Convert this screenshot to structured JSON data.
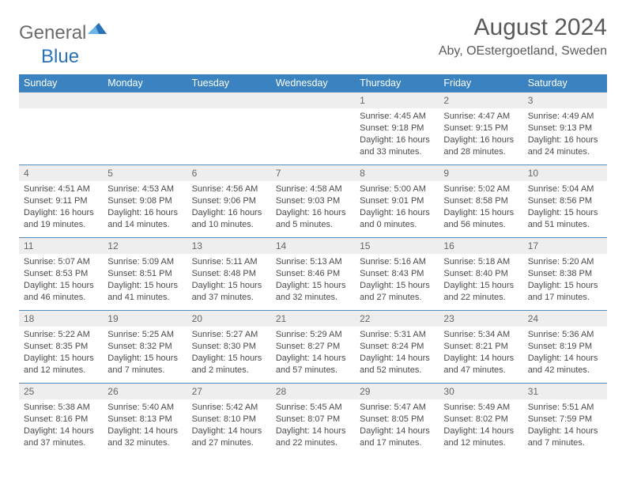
{
  "logo": {
    "word1": "General",
    "word2": "Blue"
  },
  "title": "August 2024",
  "location": "Aby, OEstergoetland, Sweden",
  "colors": {
    "header_bg": "#3b83c0",
    "header_text": "#ffffff",
    "daynum_bg": "#eeeeee",
    "row_border": "#548bbd",
    "text": "#4a4a4a",
    "title_text": "#5a5a5a",
    "logo_gray": "#6b6b6b",
    "logo_blue": "#2a71b8"
  },
  "weekdays": [
    "Sunday",
    "Monday",
    "Tuesday",
    "Wednesday",
    "Thursday",
    "Friday",
    "Saturday"
  ],
  "weeks": [
    [
      null,
      null,
      null,
      null,
      {
        "n": "1",
        "sr": "4:45 AM",
        "ss": "9:18 PM",
        "dl": "16 hours and 33 minutes."
      },
      {
        "n": "2",
        "sr": "4:47 AM",
        "ss": "9:15 PM",
        "dl": "16 hours and 28 minutes."
      },
      {
        "n": "3",
        "sr": "4:49 AM",
        "ss": "9:13 PM",
        "dl": "16 hours and 24 minutes."
      }
    ],
    [
      {
        "n": "4",
        "sr": "4:51 AM",
        "ss": "9:11 PM",
        "dl": "16 hours and 19 minutes."
      },
      {
        "n": "5",
        "sr": "4:53 AM",
        "ss": "9:08 PM",
        "dl": "16 hours and 14 minutes."
      },
      {
        "n": "6",
        "sr": "4:56 AM",
        "ss": "9:06 PM",
        "dl": "16 hours and 10 minutes."
      },
      {
        "n": "7",
        "sr": "4:58 AM",
        "ss": "9:03 PM",
        "dl": "16 hours and 5 minutes."
      },
      {
        "n": "8",
        "sr": "5:00 AM",
        "ss": "9:01 PM",
        "dl": "16 hours and 0 minutes."
      },
      {
        "n": "9",
        "sr": "5:02 AM",
        "ss": "8:58 PM",
        "dl": "15 hours and 56 minutes."
      },
      {
        "n": "10",
        "sr": "5:04 AM",
        "ss": "8:56 PM",
        "dl": "15 hours and 51 minutes."
      }
    ],
    [
      {
        "n": "11",
        "sr": "5:07 AM",
        "ss": "8:53 PM",
        "dl": "15 hours and 46 minutes."
      },
      {
        "n": "12",
        "sr": "5:09 AM",
        "ss": "8:51 PM",
        "dl": "15 hours and 41 minutes."
      },
      {
        "n": "13",
        "sr": "5:11 AM",
        "ss": "8:48 PM",
        "dl": "15 hours and 37 minutes."
      },
      {
        "n": "14",
        "sr": "5:13 AM",
        "ss": "8:46 PM",
        "dl": "15 hours and 32 minutes."
      },
      {
        "n": "15",
        "sr": "5:16 AM",
        "ss": "8:43 PM",
        "dl": "15 hours and 27 minutes."
      },
      {
        "n": "16",
        "sr": "5:18 AM",
        "ss": "8:40 PM",
        "dl": "15 hours and 22 minutes."
      },
      {
        "n": "17",
        "sr": "5:20 AM",
        "ss": "8:38 PM",
        "dl": "15 hours and 17 minutes."
      }
    ],
    [
      {
        "n": "18",
        "sr": "5:22 AM",
        "ss": "8:35 PM",
        "dl": "15 hours and 12 minutes."
      },
      {
        "n": "19",
        "sr": "5:25 AM",
        "ss": "8:32 PM",
        "dl": "15 hours and 7 minutes."
      },
      {
        "n": "20",
        "sr": "5:27 AM",
        "ss": "8:30 PM",
        "dl": "15 hours and 2 minutes."
      },
      {
        "n": "21",
        "sr": "5:29 AM",
        "ss": "8:27 PM",
        "dl": "14 hours and 57 minutes."
      },
      {
        "n": "22",
        "sr": "5:31 AM",
        "ss": "8:24 PM",
        "dl": "14 hours and 52 minutes."
      },
      {
        "n": "23",
        "sr": "5:34 AM",
        "ss": "8:21 PM",
        "dl": "14 hours and 47 minutes."
      },
      {
        "n": "24",
        "sr": "5:36 AM",
        "ss": "8:19 PM",
        "dl": "14 hours and 42 minutes."
      }
    ],
    [
      {
        "n": "25",
        "sr": "5:38 AM",
        "ss": "8:16 PM",
        "dl": "14 hours and 37 minutes."
      },
      {
        "n": "26",
        "sr": "5:40 AM",
        "ss": "8:13 PM",
        "dl": "14 hours and 32 minutes."
      },
      {
        "n": "27",
        "sr": "5:42 AM",
        "ss": "8:10 PM",
        "dl": "14 hours and 27 minutes."
      },
      {
        "n": "28",
        "sr": "5:45 AM",
        "ss": "8:07 PM",
        "dl": "14 hours and 22 minutes."
      },
      {
        "n": "29",
        "sr": "5:47 AM",
        "ss": "8:05 PM",
        "dl": "14 hours and 17 minutes."
      },
      {
        "n": "30",
        "sr": "5:49 AM",
        "ss": "8:02 PM",
        "dl": "14 hours and 12 minutes."
      },
      {
        "n": "31",
        "sr": "5:51 AM",
        "ss": "7:59 PM",
        "dl": "14 hours and 7 minutes."
      }
    ]
  ],
  "labels": {
    "sunrise": "Sunrise: ",
    "sunset": "Sunset: ",
    "daylight": "Daylight: "
  }
}
